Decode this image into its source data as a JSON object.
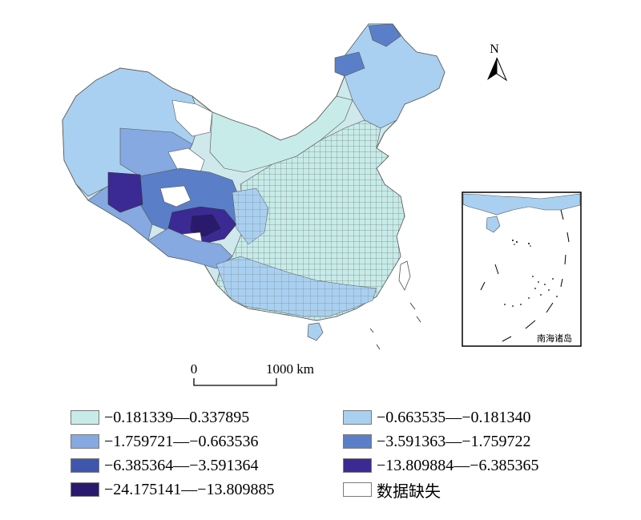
{
  "map": {
    "north_label": "N",
    "inset_label": "南海诸岛",
    "scale_start": "0",
    "scale_end": "1000 km"
  },
  "colors": {
    "c0": "#c7ebe8",
    "c1": "#a9d0f0",
    "c2": "#85a9e0",
    "c3": "#5a7fc8",
    "c4": "#3e56ad",
    "c5": "#3b2a93",
    "c6": "#2a1a6e",
    "c7": "#ffffff",
    "border": "#6b6b6b"
  },
  "legend": [
    {
      "label": "−0.181339—0.337895",
      "color": "#c7ebe8"
    },
    {
      "label": "−0.663535—−0.181340",
      "color": "#a9d0f0"
    },
    {
      "label": "−1.759721—−0.663536",
      "color": "#85a9e0"
    },
    {
      "label": "−3.591363—−1.759722",
      "color": "#5a7fc8"
    },
    {
      "label": "−6.385364—−3.591364",
      "color": "#3e56ad"
    },
    {
      "label": "−13.809884—−6.385365",
      "color": "#3b2a93"
    },
    {
      "label": "−24.175141—−13.809885",
      "color": "#2a1a6e"
    },
    {
      "label": "数据缺失",
      "color": "#ffffff"
    }
  ]
}
